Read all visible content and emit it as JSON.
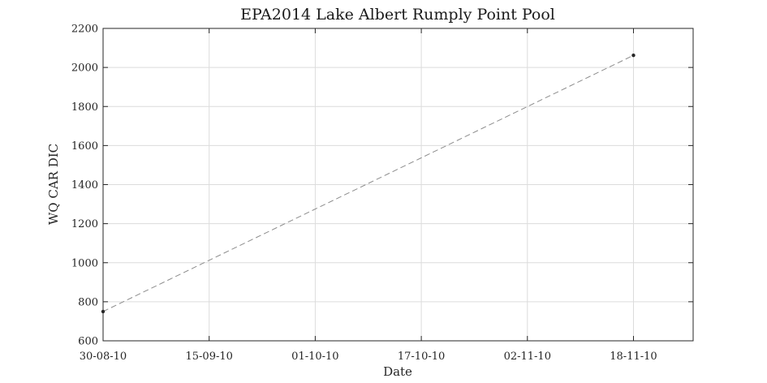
{
  "chart_data": {
    "type": "line",
    "title": "EPA2014 Lake Albert Rumply Point Pool",
    "xlabel": "Date",
    "ylabel": "WQ CAR DIC",
    "x_tick_labels": [
      "30-08-10",
      "15-09-10",
      "01-10-10",
      "17-10-10",
      "02-11-10",
      "18-11-10"
    ],
    "x_ticks": [
      "2010-08-30",
      "2010-09-15",
      "2010-10-01",
      "2010-10-17",
      "2010-11-02",
      "2010-11-18"
    ],
    "xlim": [
      "2010-08-30",
      "2010-11-27"
    ],
    "ylim": [
      600,
      2200
    ],
    "y_ticks": [
      600,
      800,
      1000,
      1200,
      1400,
      1600,
      1800,
      2000,
      2200
    ],
    "grid": true,
    "series": [
      {
        "x": [
          "2010-08-30",
          "2010-11-18"
        ],
        "y": [
          750,
          2062
        ],
        "line_style": "dashed",
        "line_color": "#8c8c8c",
        "marker_color": "#262626"
      }
    ]
  }
}
